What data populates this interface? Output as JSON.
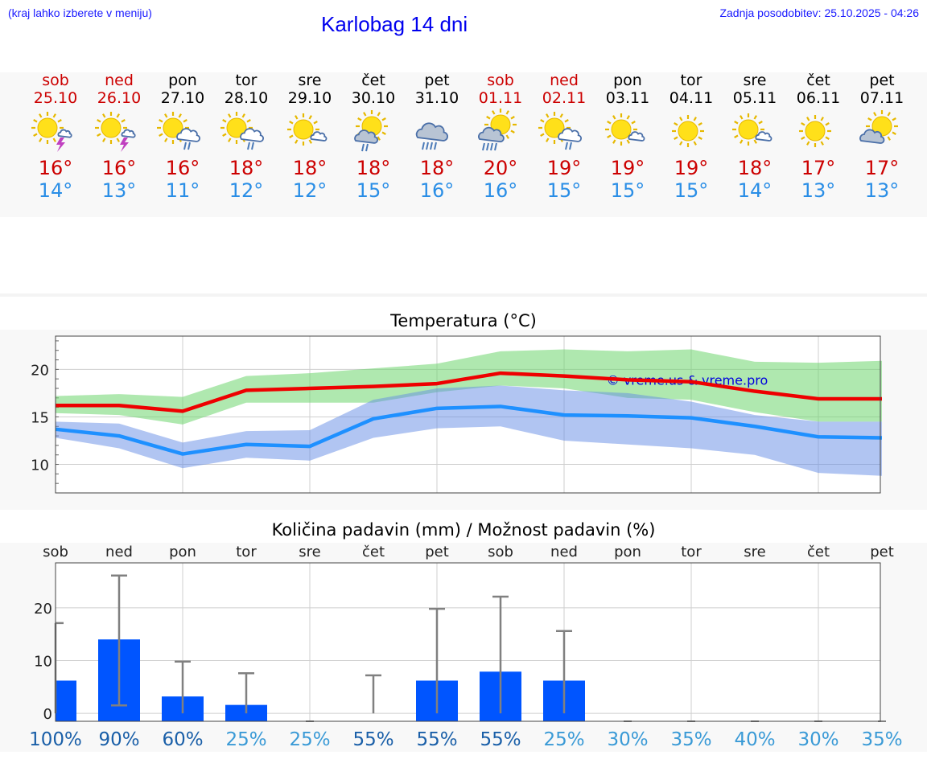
{
  "header": {
    "left_note": "(kraj lahko izberete v meniju)",
    "title": "Karlobag 14 dni",
    "updated": "Zadnja posodobitev: 25.10.2025 - 04:26"
  },
  "colors": {
    "link": "#1a1aff",
    "max_temp": "#cc0000",
    "min_temp": "#2a8ee6",
    "bar": "#0055ff",
    "high_prob": "#1a5fa8",
    "low_prob": "#3a9ad6"
  },
  "days": [
    {
      "name": "sob",
      "date": "25.10",
      "weekend": true,
      "icon": "sun-thunder-icon",
      "tmax": "16°",
      "tmin": "14°"
    },
    {
      "name": "ned",
      "date": "26.10",
      "weekend": true,
      "icon": "sun-thunder-icon",
      "tmax": "16°",
      "tmin": "13°"
    },
    {
      "name": "pon",
      "date": "27.10",
      "weekend": false,
      "icon": "sun-cloud-rain-icon",
      "tmax": "16°",
      "tmin": "11°"
    },
    {
      "name": "tor",
      "date": "28.10",
      "weekend": false,
      "icon": "sun-cloud-rain-icon",
      "tmax": "18°",
      "tmin": "12°"
    },
    {
      "name": "sre",
      "date": "29.10",
      "weekend": false,
      "icon": "sun-small-cloud-icon",
      "tmax": "18°",
      "tmin": "12°"
    },
    {
      "name": "čet",
      "date": "30.10",
      "weekend": false,
      "icon": "sun-grey-cloud-rain-icon",
      "tmax": "18°",
      "tmin": "15°"
    },
    {
      "name": "pet",
      "date": "31.10",
      "weekend": false,
      "icon": "cloud-heavy-rain-icon",
      "tmax": "18°",
      "tmin": "16°"
    },
    {
      "name": "sob",
      "date": "01.11",
      "weekend": true,
      "icon": "sun-grey-cloud-heavy-rain-icon",
      "tmax": "20°",
      "tmin": "16°"
    },
    {
      "name": "ned",
      "date": "02.11",
      "weekend": true,
      "icon": "sun-cloud-rain-icon",
      "tmax": "19°",
      "tmin": "15°"
    },
    {
      "name": "pon",
      "date": "03.11",
      "weekend": false,
      "icon": "sun-small-cloud-icon",
      "tmax": "19°",
      "tmin": "15°"
    },
    {
      "name": "tor",
      "date": "04.11",
      "weekend": false,
      "icon": "sun-icon",
      "tmax": "19°",
      "tmin": "15°"
    },
    {
      "name": "sre",
      "date": "05.11",
      "weekend": false,
      "icon": "sun-small-cloud-icon",
      "tmax": "18°",
      "tmin": "14°"
    },
    {
      "name": "čet",
      "date": "06.11",
      "weekend": false,
      "icon": "sun-icon",
      "tmax": "17°",
      "tmin": "13°"
    },
    {
      "name": "pet",
      "date": "07.11",
      "weekend": false,
      "icon": "sun-grey-cloud-icon",
      "tmax": "17°",
      "tmin": "13°"
    }
  ],
  "chart_data": [
    {
      "type": "line",
      "title": "Temperatura (°C)",
      "categories": [
        "25.10",
        "26.10",
        "27.10",
        "28.10",
        "29.10",
        "30.10",
        "31.10",
        "01.11",
        "02.11",
        "03.11",
        "04.11",
        "05.11",
        "06.11",
        "07.11"
      ],
      "ylim": [
        7,
        23.5
      ],
      "yticks": [
        "10",
        "15",
        "20"
      ],
      "watermark": "© vreme.us & vreme.pro",
      "series": [
        {
          "name": "max",
          "color": "#ee0000",
          "values": [
            16.2,
            16.2,
            15.6,
            17.8,
            18.0,
            18.2,
            18.5,
            19.6,
            19.3,
            18.9,
            18.7,
            17.7,
            16.9,
            16.9
          ],
          "band_low": [
            15.4,
            15.2,
            14.2,
            16.5,
            16.5,
            16.5,
            17.6,
            18.3,
            18.0,
            17.0,
            16.8,
            15.5,
            14.5,
            14.5
          ],
          "band_high": [
            17.2,
            17.4,
            17.1,
            19.3,
            19.6,
            20.1,
            20.6,
            21.9,
            22.1,
            21.9,
            22.1,
            20.8,
            20.7,
            20.9
          ]
        },
        {
          "name": "min",
          "color": "#1e90ff",
          "values": [
            13.7,
            13.0,
            11.1,
            12.1,
            11.9,
            14.8,
            15.9,
            16.1,
            15.2,
            15.1,
            14.9,
            14.0,
            12.9,
            12.8
          ],
          "band_low": [
            12.8,
            11.7,
            9.6,
            10.7,
            10.4,
            12.8,
            13.8,
            14.0,
            12.5,
            12.1,
            11.7,
            11.0,
            9.1,
            8.8
          ],
          "band_high": [
            14.5,
            14.3,
            12.3,
            13.5,
            13.6,
            16.8,
            18.0,
            18.3,
            17.8,
            17.5,
            16.6,
            15.2,
            14.5,
            14.5
          ]
        }
      ]
    },
    {
      "type": "bar",
      "title": "Količina padavin (mm) / Možnost padavin (%)",
      "categories": [
        "sob",
        "ned",
        "pon",
        "tor",
        "sre",
        "čet",
        "pet",
        "sob",
        "ned",
        "pon",
        "tor",
        "sre",
        "čet",
        "pet"
      ],
      "ylim": [
        -1.5,
        28.5
      ],
      "yticks": [
        "0",
        "10",
        "20"
      ],
      "values": [
        6.2,
        14.0,
        3.2,
        1.6,
        0,
        0,
        6.2,
        7.9,
        6.2,
        0,
        0,
        0,
        0,
        0
      ],
      "range_low": [
        0,
        1.5,
        0,
        0,
        0,
        0,
        0,
        0,
        0,
        0,
        0,
        0,
        0,
        0
      ],
      "range_high": [
        17.1,
        26.1,
        9.8,
        7.6,
        0,
        7.2,
        19.8,
        22.1,
        15.6,
        0,
        0,
        0,
        0,
        0
      ],
      "probability": [
        "100%",
        "90%",
        "60%",
        "25%",
        "25%",
        "55%",
        "55%",
        "55%",
        "25%",
        "30%",
        "35%",
        "40%",
        "30%",
        "35%"
      ],
      "probability_values": [
        100,
        90,
        60,
        25,
        25,
        55,
        55,
        55,
        25,
        30,
        35,
        40,
        30,
        35
      ]
    }
  ]
}
